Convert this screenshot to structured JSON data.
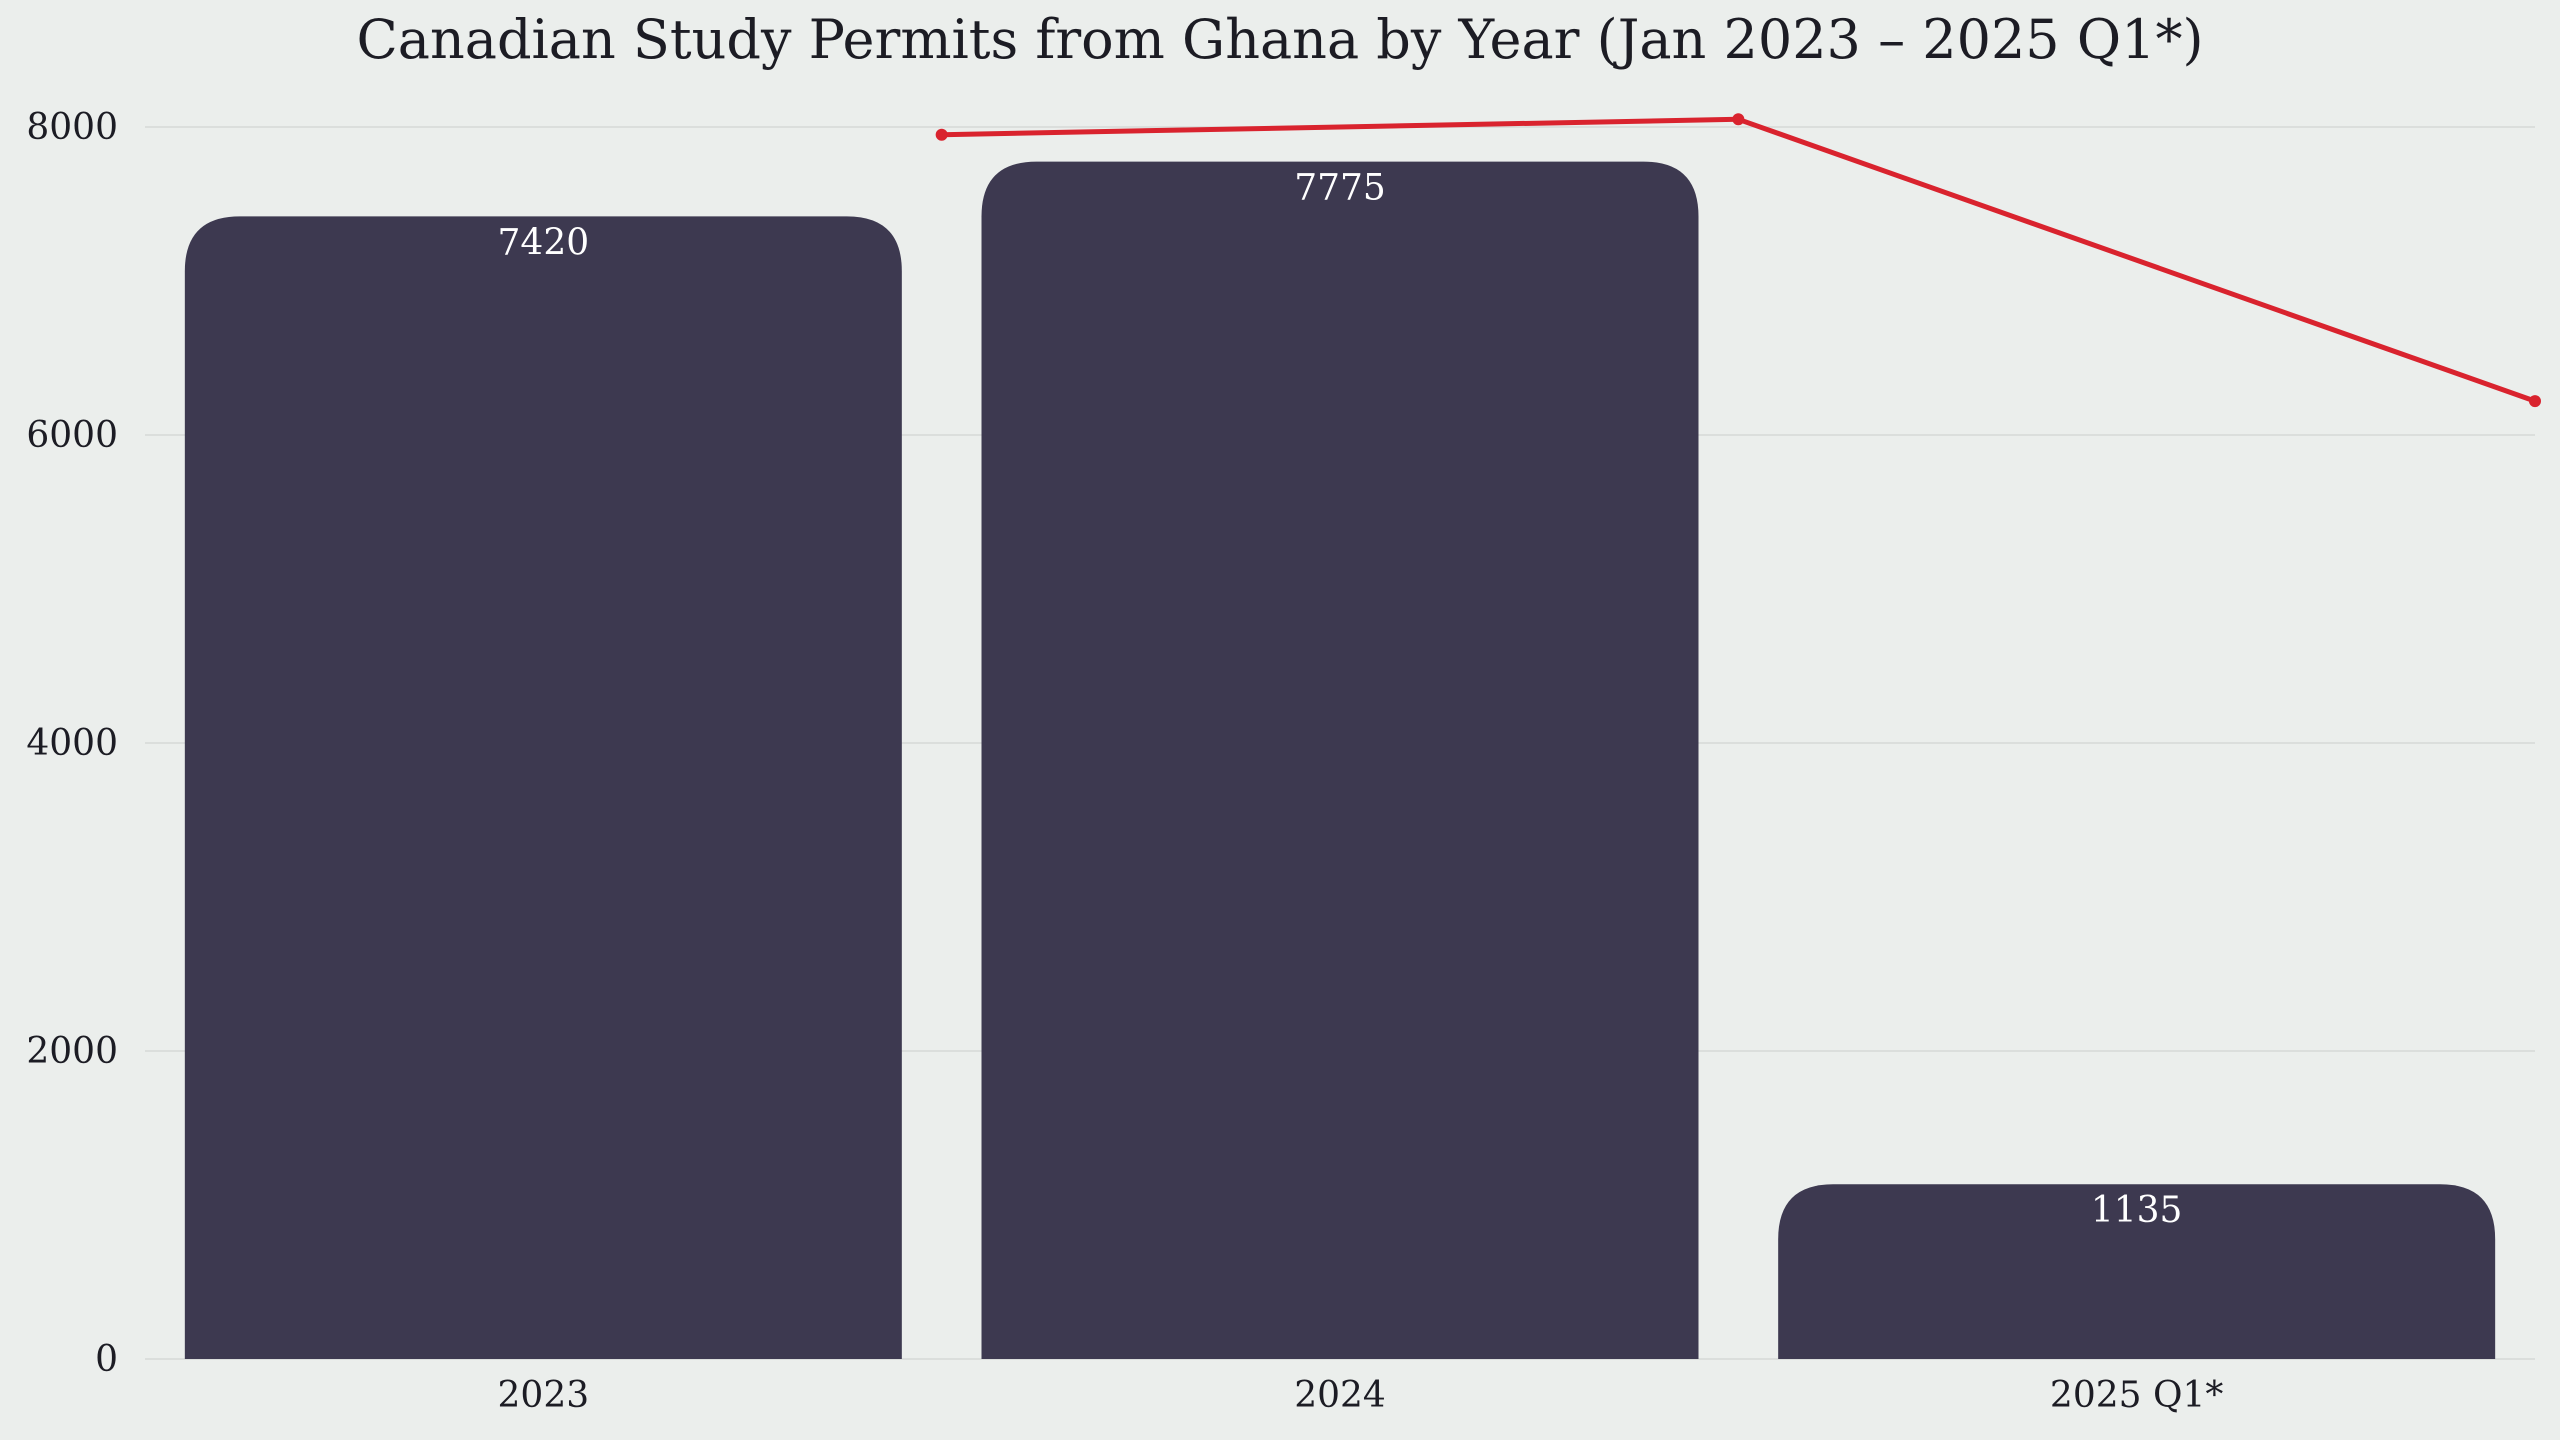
{
  "chart_data": {
    "type": "bar",
    "title": "Canadian Study Permits from Ghana by Year (Jan 2023 – 2025 Q1*)",
    "xlabel": "",
    "ylabel": "",
    "categories": [
      "2023",
      "2024",
      "2025 Q1*"
    ],
    "series": [
      {
        "type": "bar",
        "values": [
          7420,
          7775,
          1135
        ],
        "labels": [
          "7420",
          "7775",
          "1135"
        ]
      },
      {
        "type": "line",
        "values": [
          7950,
          8050,
          6220
        ]
      }
    ],
    "ylim": [
      0,
      8000
    ],
    "yticks": [
      "0",
      "2000",
      "4000",
      "6000",
      "8000"
    ],
    "grid": true,
    "legend": "none",
    "colors": {
      "bar": "#3d3950",
      "line": "#d9232e",
      "background": "#ebeeec",
      "grid": "#d6d9d7"
    }
  }
}
